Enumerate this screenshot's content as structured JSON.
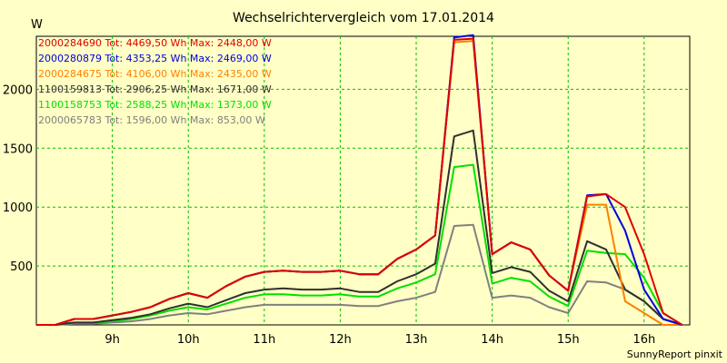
{
  "chart_data": {
    "type": "line",
    "title": "Wechselrichtervergleich vom 17.01.2014",
    "ylabel": "W",
    "footer": "SunnyReport pinxit",
    "xlim": [
      8.0,
      16.6
    ],
    "ylim": [
      0,
      2450
    ],
    "xticks": [
      {
        "v": 9,
        "label": "9h"
      },
      {
        "v": 10,
        "label": "10h"
      },
      {
        "v": 11,
        "label": "11h"
      },
      {
        "v": 12,
        "label": "12h"
      },
      {
        "v": 13,
        "label": "13h"
      },
      {
        "v": 14,
        "label": "14h"
      },
      {
        "v": 15,
        "label": "15h"
      },
      {
        "v": 16,
        "label": "16h"
      }
    ],
    "yticks": [
      {
        "v": 500,
        "label": "500"
      },
      {
        "v": 1000,
        "label": "1000"
      },
      {
        "v": 1500,
        "label": "1500"
      },
      {
        "v": 2000,
        "label": "2000"
      }
    ],
    "grid": true,
    "x": [
      8.0,
      8.25,
      8.5,
      8.75,
      9.0,
      9.25,
      9.5,
      9.75,
      10.0,
      10.25,
      10.5,
      10.75,
      11.0,
      11.25,
      11.5,
      11.75,
      12.0,
      12.25,
      12.5,
      12.75,
      13.0,
      13.25,
      13.5,
      13.75,
      14.0,
      14.25,
      14.5,
      14.75,
      15.0,
      15.25,
      15.5,
      15.75,
      16.0,
      16.25,
      16.5
    ],
    "series": [
      {
        "name": "2000284690",
        "legend": "2000284690 Tot: 4469,50 Wh Max: 2448,00 W",
        "color": "#e00000",
        "values": [
          0,
          0,
          50,
          50,
          80,
          110,
          150,
          220,
          270,
          230,
          330,
          410,
          450,
          460,
          450,
          450,
          460,
          430,
          430,
          560,
          640,
          760,
          2420,
          2430,
          600,
          700,
          640,
          420,
          290,
          1090,
          1110,
          1000,
          600,
          100,
          0
        ]
      },
      {
        "name": "2000280879",
        "legend": "2000280879 Tot: 4353,25 Wh Max: 2469,00 W",
        "color": "#0000e0",
        "values": [
          0,
          0,
          50,
          50,
          80,
          110,
          150,
          220,
          270,
          230,
          330,
          410,
          450,
          460,
          450,
          450,
          460,
          430,
          430,
          560,
          640,
          760,
          2440,
          2460,
          600,
          700,
          640,
          420,
          290,
          1100,
          1110,
          800,
          300,
          50,
          0
        ]
      },
      {
        "name": "2000284675",
        "legend": "2000284675 Tot: 4106,00 Wh Max: 2435,00 W",
        "color": "#ff8000",
        "values": [
          0,
          0,
          50,
          50,
          80,
          110,
          150,
          220,
          270,
          230,
          330,
          410,
          450,
          460,
          450,
          450,
          460,
          430,
          430,
          560,
          640,
          760,
          2400,
          2410,
          600,
          700,
          640,
          420,
          290,
          1020,
          1020,
          200,
          100,
          0,
          0
        ]
      },
      {
        "name": "1100159813",
        "legend": "1100159813 Tot: 2906,25 Wh Max: 1671,00 W",
        "color": "#303030",
        "values": [
          0,
          0,
          20,
          20,
          40,
          60,
          90,
          140,
          180,
          150,
          210,
          270,
          300,
          310,
          300,
          300,
          310,
          280,
          280,
          370,
          430,
          520,
          1600,
          1650,
          440,
          490,
          450,
          290,
          200,
          710,
          640,
          300,
          200,
          50,
          0
        ]
      },
      {
        "name": "1100158753",
        "legend": "1100158753 Tot: 2588,25 Wh Max: 1373,00 W",
        "color": "#00e000",
        "values": [
          0,
          0,
          20,
          20,
          30,
          50,
          80,
          120,
          150,
          130,
          180,
          230,
          260,
          260,
          250,
          250,
          260,
          240,
          240,
          310,
          360,
          430,
          1340,
          1360,
          350,
          400,
          370,
          240,
          160,
          630,
          610,
          600,
          400,
          100,
          0
        ]
      },
      {
        "name": "2000065783",
        "legend": "2000065783 Tot: 1596,00 Wh Max: 853,00 W",
        "color": "#808080",
        "values": [
          0,
          0,
          10,
          10,
          20,
          30,
          50,
          80,
          100,
          90,
          120,
          150,
          170,
          170,
          170,
          170,
          170,
          160,
          160,
          200,
          230,
          280,
          840,
          850,
          230,
          250,
          230,
          150,
          100,
          370,
          360,
          300,
          200,
          50,
          0
        ]
      }
    ]
  }
}
